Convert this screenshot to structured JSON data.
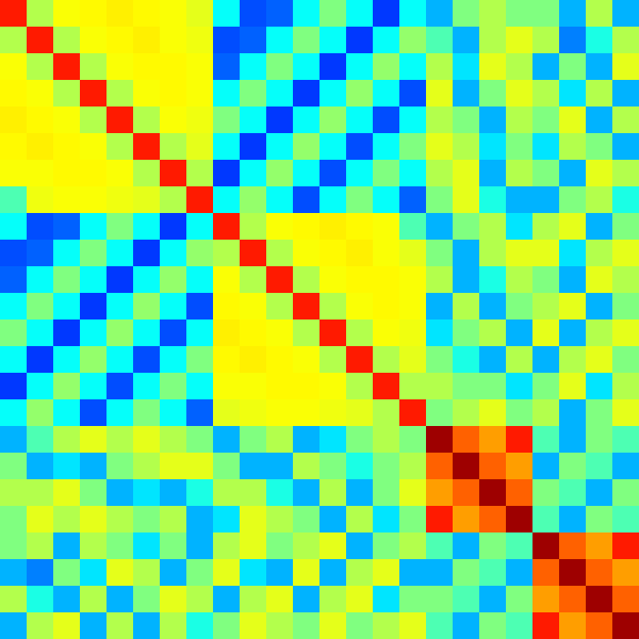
{
  "chart_data": {
    "type": "heatmap",
    "tick_labels": false,
    "color_range": [
      0,
      1
    ],
    "cells": [
      [
        0.85,
        0.55,
        0.62,
        0.63,
        0.64,
        0.63,
        0.62,
        0.6,
        0.38,
        0.2,
        0.22,
        0.38,
        0.5,
        0.38,
        0.18,
        0.38,
        0.3,
        0.5,
        0.55,
        0.5,
        0.5,
        0.3,
        0.55,
        0.3
      ],
      [
        0.55,
        0.85,
        0.55,
        0.62,
        0.63,
        0.64,
        0.62,
        0.61,
        0.2,
        0.22,
        0.38,
        0.5,
        0.38,
        0.18,
        0.38,
        0.52,
        0.45,
        0.3,
        0.55,
        0.6,
        0.55,
        0.25,
        0.4,
        0.55
      ],
      [
        0.62,
        0.55,
        0.85,
        0.55,
        0.62,
        0.63,
        0.63,
        0.62,
        0.22,
        0.38,
        0.5,
        0.38,
        0.18,
        0.38,
        0.52,
        0.38,
        0.55,
        0.35,
        0.6,
        0.55,
        0.3,
        0.5,
        0.3,
        0.6
      ],
      [
        0.63,
        0.62,
        0.55,
        0.85,
        0.55,
        0.62,
        0.63,
        0.62,
        0.38,
        0.5,
        0.38,
        0.18,
        0.38,
        0.52,
        0.38,
        0.2,
        0.6,
        0.3,
        0.5,
        0.6,
        0.55,
        0.35,
        0.55,
        0.3
      ],
      [
        0.64,
        0.63,
        0.62,
        0.55,
        0.85,
        0.55,
        0.62,
        0.61,
        0.5,
        0.38,
        0.18,
        0.38,
        0.52,
        0.38,
        0.2,
        0.38,
        0.55,
        0.5,
        0.3,
        0.55,
        0.5,
        0.6,
        0.3,
        0.55
      ],
      [
        0.63,
        0.64,
        0.63,
        0.62,
        0.55,
        0.85,
        0.55,
        0.6,
        0.38,
        0.18,
        0.38,
        0.52,
        0.38,
        0.2,
        0.38,
        0.5,
        0.6,
        0.55,
        0.35,
        0.5,
        0.35,
        0.55,
        0.5,
        0.3
      ],
      [
        0.62,
        0.62,
        0.63,
        0.63,
        0.62,
        0.55,
        0.85,
        0.55,
        0.18,
        0.38,
        0.52,
        0.38,
        0.2,
        0.38,
        0.5,
        0.38,
        0.55,
        0.6,
        0.3,
        0.55,
        0.5,
        0.3,
        0.6,
        0.55
      ],
      [
        0.45,
        0.61,
        0.62,
        0.62,
        0.61,
        0.6,
        0.55,
        0.85,
        0.38,
        0.52,
        0.38,
        0.2,
        0.38,
        0.5,
        0.38,
        0.22,
        0.5,
        0.6,
        0.4,
        0.3,
        0.3,
        0.5,
        0.55,
        0.4
      ],
      [
        0.38,
        0.2,
        0.22,
        0.38,
        0.5,
        0.38,
        0.18,
        0.38,
        0.85,
        0.55,
        0.62,
        0.63,
        0.64,
        0.63,
        0.62,
        0.45,
        0.3,
        0.5,
        0.55,
        0.35,
        0.55,
        0.6,
        0.3,
        0.5
      ],
      [
        0.2,
        0.22,
        0.38,
        0.5,
        0.38,
        0.18,
        0.38,
        0.52,
        0.55,
        0.85,
        0.55,
        0.62,
        0.63,
        0.64,
        0.62,
        0.6,
        0.5,
        0.3,
        0.55,
        0.6,
        0.6,
        0.35,
        0.55,
        0.6
      ],
      [
        0.22,
        0.38,
        0.5,
        0.38,
        0.18,
        0.38,
        0.52,
        0.38,
        0.62,
        0.55,
        0.85,
        0.55,
        0.62,
        0.63,
        0.63,
        0.62,
        0.55,
        0.3,
        0.4,
        0.55,
        0.5,
        0.3,
        0.6,
        0.55
      ],
      [
        0.38,
        0.5,
        0.38,
        0.18,
        0.38,
        0.52,
        0.38,
        0.2,
        0.63,
        0.62,
        0.55,
        0.85,
        0.55,
        0.62,
        0.63,
        0.62,
        0.3,
        0.55,
        0.3,
        0.5,
        0.55,
        0.6,
        0.3,
        0.5
      ],
      [
        0.5,
        0.38,
        0.18,
        0.38,
        0.52,
        0.38,
        0.2,
        0.38,
        0.64,
        0.63,
        0.62,
        0.55,
        0.85,
        0.55,
        0.62,
        0.61,
        0.35,
        0.5,
        0.55,
        0.3,
        0.6,
        0.3,
        0.55,
        0.6
      ],
      [
        0.38,
        0.18,
        0.38,
        0.52,
        0.38,
        0.2,
        0.38,
        0.5,
        0.63,
        0.64,
        0.63,
        0.62,
        0.55,
        0.85,
        0.55,
        0.6,
        0.5,
        0.4,
        0.3,
        0.55,
        0.3,
        0.55,
        0.6,
        0.5
      ],
      [
        0.18,
        0.38,
        0.52,
        0.38,
        0.2,
        0.38,
        0.5,
        0.38,
        0.62,
        0.62,
        0.63,
        0.63,
        0.62,
        0.55,
        0.85,
        0.55,
        0.55,
        0.5,
        0.5,
        0.35,
        0.5,
        0.6,
        0.35,
        0.55
      ],
      [
        0.38,
        0.52,
        0.38,
        0.2,
        0.38,
        0.5,
        0.38,
        0.22,
        0.6,
        0.61,
        0.62,
        0.62,
        0.61,
        0.6,
        0.55,
        0.85,
        0.5,
        0.55,
        0.6,
        0.5,
        0.55,
        0.3,
        0.5,
        0.6
      ],
      [
        0.3,
        0.45,
        0.55,
        0.6,
        0.55,
        0.6,
        0.55,
        0.5,
        0.3,
        0.5,
        0.55,
        0.3,
        0.35,
        0.5,
        0.55,
        0.5,
        0.97,
        0.78,
        0.72,
        0.85,
        0.45,
        0.3,
        0.5,
        0.45
      ],
      [
        0.5,
        0.3,
        0.35,
        0.3,
        0.5,
        0.55,
        0.6,
        0.6,
        0.5,
        0.3,
        0.3,
        0.55,
        0.5,
        0.4,
        0.5,
        0.55,
        0.78,
        0.97,
        0.78,
        0.72,
        0.3,
        0.5,
        0.45,
        0.3
      ],
      [
        0.55,
        0.55,
        0.6,
        0.5,
        0.3,
        0.35,
        0.3,
        0.4,
        0.55,
        0.55,
        0.4,
        0.3,
        0.55,
        0.3,
        0.5,
        0.6,
        0.72,
        0.78,
        0.97,
        0.78,
        0.5,
        0.45,
        0.3,
        0.5
      ],
      [
        0.5,
        0.6,
        0.55,
        0.6,
        0.55,
        0.5,
        0.55,
        0.3,
        0.35,
        0.6,
        0.55,
        0.5,
        0.3,
        0.55,
        0.35,
        0.5,
        0.85,
        0.72,
        0.78,
        0.97,
        0.45,
        0.3,
        0.5,
        0.45
      ],
      [
        0.5,
        0.55,
        0.3,
        0.55,
        0.5,
        0.35,
        0.5,
        0.3,
        0.55,
        0.6,
        0.5,
        0.55,
        0.6,
        0.3,
        0.5,
        0.55,
        0.45,
        0.3,
        0.5,
        0.45,
        0.97,
        0.78,
        0.72,
        0.85
      ],
      [
        0.3,
        0.25,
        0.5,
        0.35,
        0.6,
        0.55,
        0.3,
        0.5,
        0.6,
        0.35,
        0.3,
        0.6,
        0.3,
        0.55,
        0.6,
        0.3,
        0.3,
        0.5,
        0.45,
        0.3,
        0.78,
        0.97,
        0.78,
        0.72
      ],
      [
        0.55,
        0.4,
        0.3,
        0.55,
        0.3,
        0.5,
        0.6,
        0.55,
        0.3,
        0.55,
        0.6,
        0.3,
        0.55,
        0.6,
        0.35,
        0.5,
        0.5,
        0.45,
        0.3,
        0.5,
        0.72,
        0.78,
        0.97,
        0.78
      ],
      [
        0.3,
        0.55,
        0.6,
        0.3,
        0.55,
        0.3,
        0.55,
        0.4,
        0.5,
        0.6,
        0.55,
        0.5,
        0.6,
        0.5,
        0.55,
        0.6,
        0.45,
        0.3,
        0.5,
        0.45,
        0.85,
        0.72,
        0.78,
        0.97
      ]
    ]
  }
}
